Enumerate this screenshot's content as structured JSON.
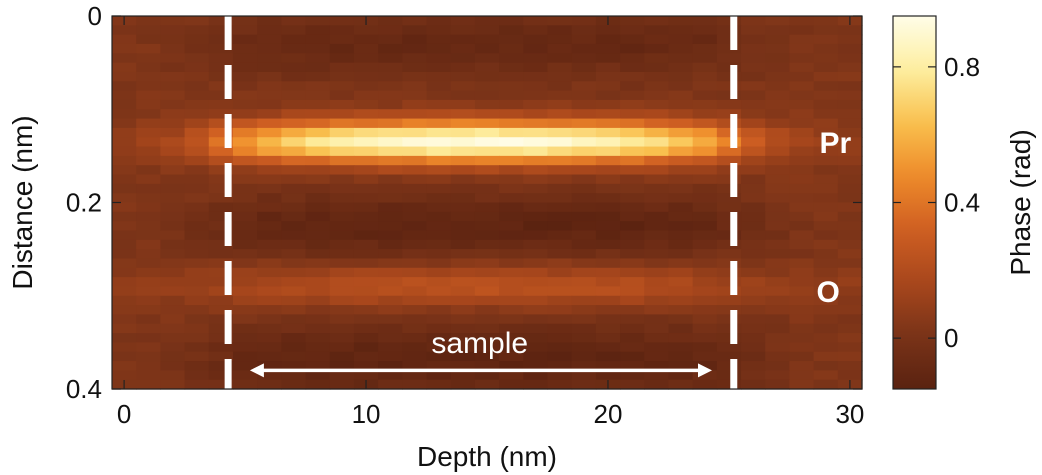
{
  "chart_data": {
    "type": "heatmap",
    "title": "",
    "xlabel": "Depth (nm)",
    "ylabel": "Distance (nm)",
    "colorbar_label": "Phase (rad)",
    "xlim": [
      -0.5,
      30.5
    ],
    "ylim": [
      0.4,
      0
    ],
    "xticks": [
      0,
      10,
      20,
      30
    ],
    "xtick_labels": [
      "0",
      "10",
      "20",
      "30"
    ],
    "yticks": [
      0,
      0.2,
      0.4
    ],
    "ytick_labels": [
      "0",
      "0.2",
      "0.4"
    ],
    "colorbar_ticks": [
      0,
      0.4,
      0.8
    ],
    "colorbar_tick_labels": [
      "0",
      "0.4",
      "0.8"
    ],
    "colorbar_range": [
      -0.15,
      0.95
    ],
    "colormap": [
      "#5a2210",
      "#7a3318",
      "#a8471c",
      "#cf5f22",
      "#ee8a2a",
      "#f9c04e",
      "#fdeea0",
      "#fffde8"
    ],
    "grid": false,
    "x_columns": [
      -0.5,
      30.5,
      31
    ],
    "y_rows": [
      0,
      0.4,
      40
    ],
    "sample_region": [
      4.3,
      25.2
    ],
    "atomic_rows": [
      {
        "label": "Pr",
        "distance": 0.135,
        "peak_phase": 0.9,
        "width": 0.016
      },
      {
        "label": "O",
        "distance": 0.29,
        "peak_phase": 0.22,
        "width": 0.016
      }
    ],
    "annotations": [
      {
        "text": "Pr",
        "x": 29.4,
        "y": 0.135
      },
      {
        "text": "O",
        "x": 29.1,
        "y": 0.295
      },
      {
        "text": "sample",
        "x": 14.7,
        "y": 0.352
      }
    ],
    "background_phase": 0.03,
    "min_phase": -0.12
  }
}
